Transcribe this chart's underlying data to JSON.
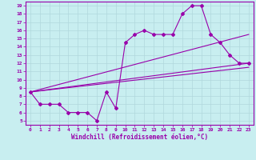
{
  "title": "",
  "xlabel": "Windchill (Refroidissement éolien,°C)",
  "background_color": "#c8eef0",
  "line_color": "#9900aa",
  "xlim": [
    -0.5,
    23.5
  ],
  "ylim": [
    4.5,
    19.5
  ],
  "xticks": [
    0,
    1,
    2,
    3,
    4,
    5,
    6,
    7,
    8,
    9,
    10,
    11,
    12,
    13,
    14,
    15,
    16,
    17,
    18,
    19,
    20,
    21,
    22,
    23
  ],
  "yticks": [
    5,
    6,
    7,
    8,
    9,
    10,
    11,
    12,
    13,
    14,
    15,
    16,
    17,
    18,
    19
  ],
  "main_line_x": [
    0,
    1,
    2,
    3,
    4,
    5,
    6,
    7,
    8,
    9,
    10,
    11,
    12,
    13,
    14,
    15,
    16,
    17,
    18,
    19,
    20,
    21,
    22,
    23
  ],
  "main_line_y": [
    8.5,
    7.0,
    7.0,
    7.0,
    6.0,
    6.0,
    6.0,
    5.0,
    8.5,
    6.5,
    14.5,
    15.5,
    16.0,
    15.5,
    15.5,
    15.5,
    18.0,
    19.0,
    19.0,
    15.5,
    14.5,
    13.0,
    12.0,
    12.0
  ],
  "line2_x": [
    0,
    23
  ],
  "line2_y": [
    8.5,
    11.5
  ],
  "line3_x": [
    0,
    23
  ],
  "line3_y": [
    8.5,
    12.0
  ],
  "line4_x": [
    0,
    23
  ],
  "line4_y": [
    8.5,
    15.5
  ],
  "tick_fontsize": 4.5,
  "xlabel_fontsize": 5.5
}
